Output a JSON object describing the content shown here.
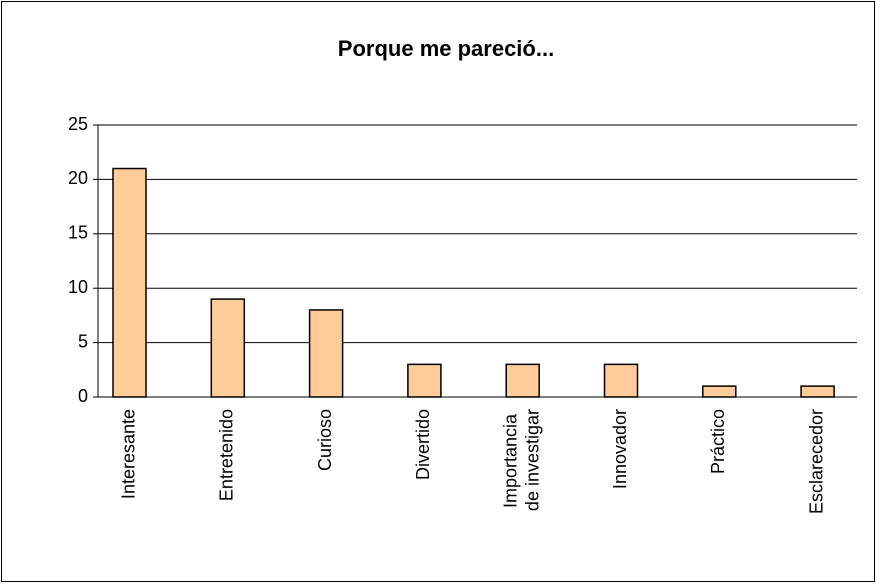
{
  "chart_data": {
    "type": "bar",
    "title": "Porque me pareció...",
    "categories": [
      "Interesante",
      "Entretenido",
      "Curioso",
      "Divertido",
      "Importancia de investigar",
      "Innovador",
      "Práctico",
      "Esclarecedor"
    ],
    "values": [
      21,
      9,
      8,
      3,
      3,
      3,
      1,
      1
    ],
    "color": "#ffcc99",
    "ylim": [
      0,
      25
    ],
    "yticks": [
      0,
      5,
      10,
      15,
      20,
      25
    ],
    "grid": true
  }
}
